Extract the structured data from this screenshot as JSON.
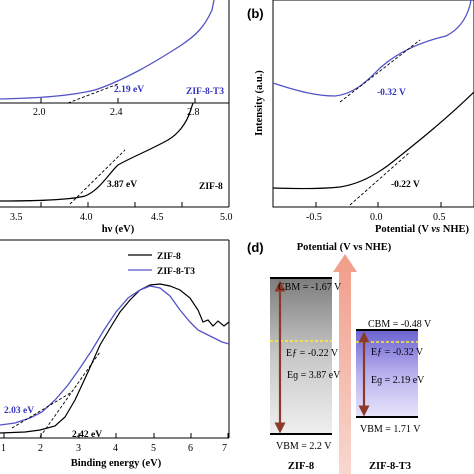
{
  "chart_data": [
    {
      "panel": "",
      "type": "line",
      "xlabel": "hν (eV)",
      "x_ticks": [
        "3.5",
        "4.0",
        "4.5",
        "5.0"
      ],
      "upper_x_ticks": [
        "2.0",
        "2.4",
        "2.8"
      ],
      "series": [
        {
          "name": "ZIF-8-T3",
          "color": "#5454c8",
          "band_gap_label": "2.19 eV"
        },
        {
          "name": "ZIF-8",
          "color": "#000000",
          "band_gap_label": "3.87 eV"
        }
      ]
    },
    {
      "panel": "(b)",
      "type": "line",
      "ylabel": "Intensity (a.u.)",
      "xlabel_parts": [
        "Potential (V ",
        "vs",
        " NHE)"
      ],
      "x_ticks": [
        "-0.5",
        "0.0",
        "0.5"
      ],
      "series": [
        {
          "name": "ZIF-8-T3",
          "color": "#5454c8",
          "onset_label": "-0.32 V"
        },
        {
          "name": "ZIF-8",
          "color": "#000000",
          "onset_label": "-0.22 V"
        }
      ]
    },
    {
      "panel": "",
      "type": "line",
      "xlabel": "Binding energy (eV)",
      "x_ticks": [
        "1",
        "2",
        "3",
        "4",
        "5",
        "6",
        "7"
      ],
      "xlim": [
        1,
        7
      ],
      "legend": [
        "ZIF-8",
        "ZIF-8-T3"
      ],
      "annotations": [
        {
          "text": "2.03 eV",
          "color": "#3333bb"
        },
        {
          "text": "2.42 eV",
          "color": "#000000"
        }
      ]
    },
    {
      "panel": "(d)",
      "type": "diagram",
      "title": "Potential (V vs NHE)",
      "materials": [
        {
          "name": "ZIF-8",
          "cbm": "CBM = -1.67 V",
          "ef": "Eƒ = -0.22 V",
          "eg": "Eɡ = 3.87 eV",
          "vbm": "VBM = 2.2 V"
        },
        {
          "name": "ZIF-8-T3",
          "cbm": "CBM = -0.48 V",
          "ef": "Eƒ = -0.32 V",
          "eg": "Eɡ = 2.19 eV",
          "vbm": "VBM = 1.71 V"
        }
      ]
    }
  ]
}
